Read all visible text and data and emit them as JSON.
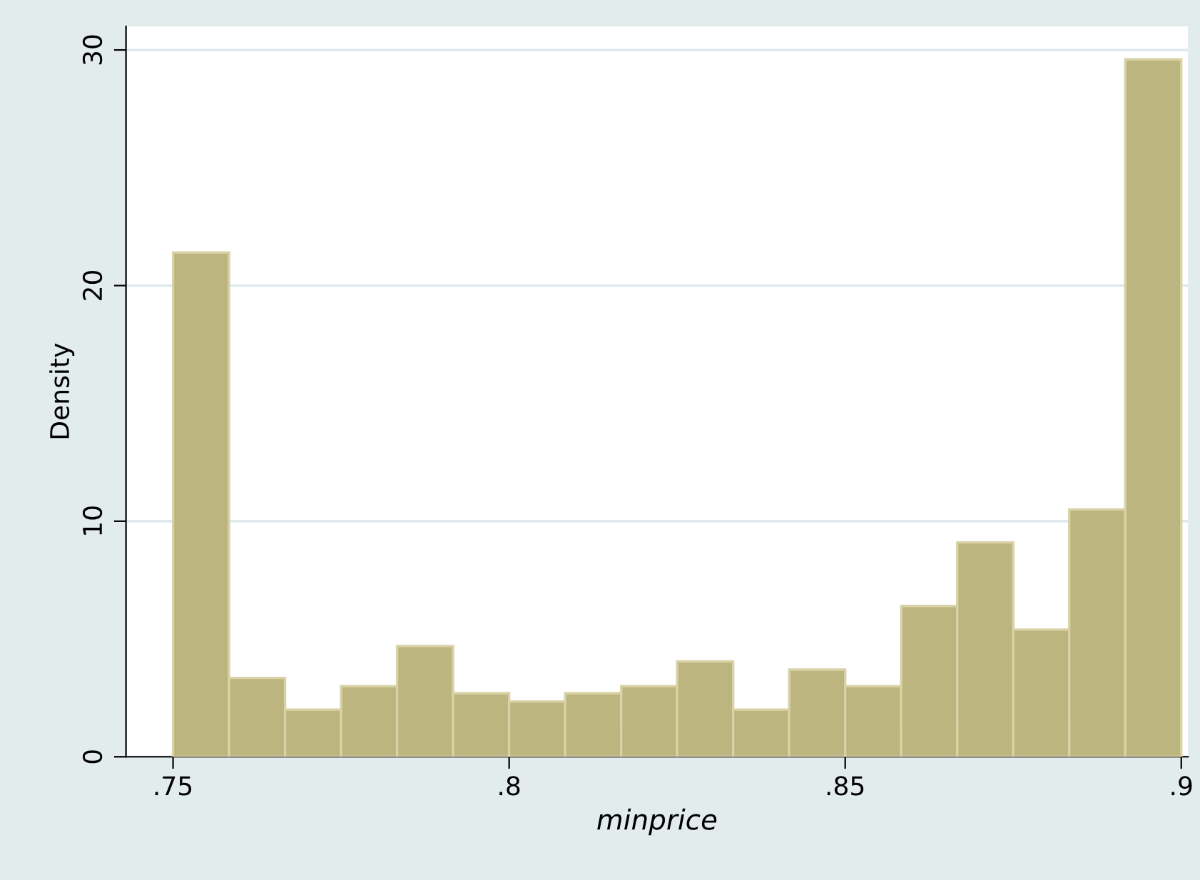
{
  "chart_data": {
    "type": "histogram",
    "xlabel": "minprice",
    "ylabel": "Density",
    "bins": [
      0.75,
      0.758333,
      0.766667,
      0.775,
      0.783333,
      0.791667,
      0.8,
      0.808333,
      0.816667,
      0.825,
      0.833333,
      0.841667,
      0.85,
      0.858333,
      0.866667,
      0.875,
      0.883333,
      0.891667,
      0.9
    ],
    "values": [
      21.4,
      3.35,
      2.0,
      3.0,
      4.7,
      2.7,
      2.35,
      2.7,
      3.0,
      4.05,
      2.0,
      3.7,
      3.0,
      6.4,
      9.1,
      5.4,
      10.5,
      29.6
    ],
    "color": "#bdb57f",
    "xlim": [
      0.743,
      0.901
    ],
    "ylim": [
      0,
      31
    ],
    "xticks": [
      {
        "value": 0.75,
        "label": ".75"
      },
      {
        "value": 0.8,
        "label": ".8"
      },
      {
        "value": 0.85,
        "label": ".85"
      },
      {
        "value": 0.9,
        "label": ".9"
      }
    ],
    "yticks": [
      0,
      10,
      20,
      30
    ],
    "grid": "y",
    "legend": false
  }
}
